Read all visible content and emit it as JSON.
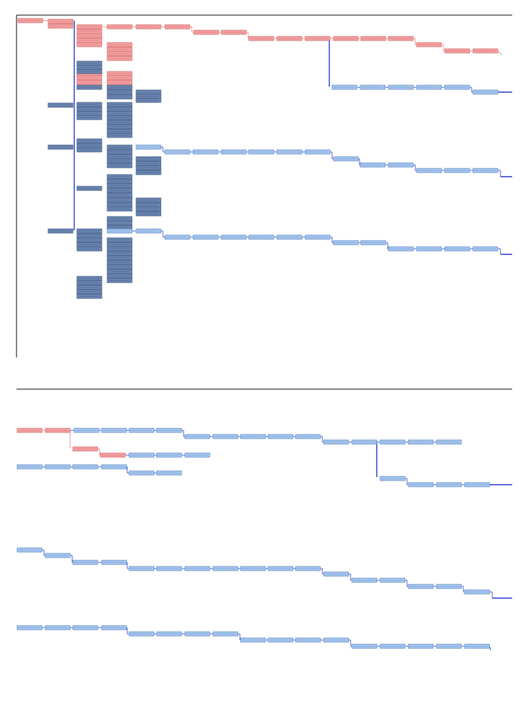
{
  "page": {
    "title": "",
    "panels": [
      "network-diagram-page-1",
      "network-diagram-page-2"
    ]
  },
  "legend": {
    "critical_task_color": "#f4a3a3",
    "critical_task_border": "#d46a6a",
    "noncritical_task_color": "#a9c9ef",
    "noncritical_task_border": "#5a86c4",
    "summary_task_color": "#6f89b3",
    "summary_task_border": "#34507e",
    "connector_color": "#1f2fc9",
    "critical_connector_color": "#e27878",
    "frame_color": "#000000"
  }
}
